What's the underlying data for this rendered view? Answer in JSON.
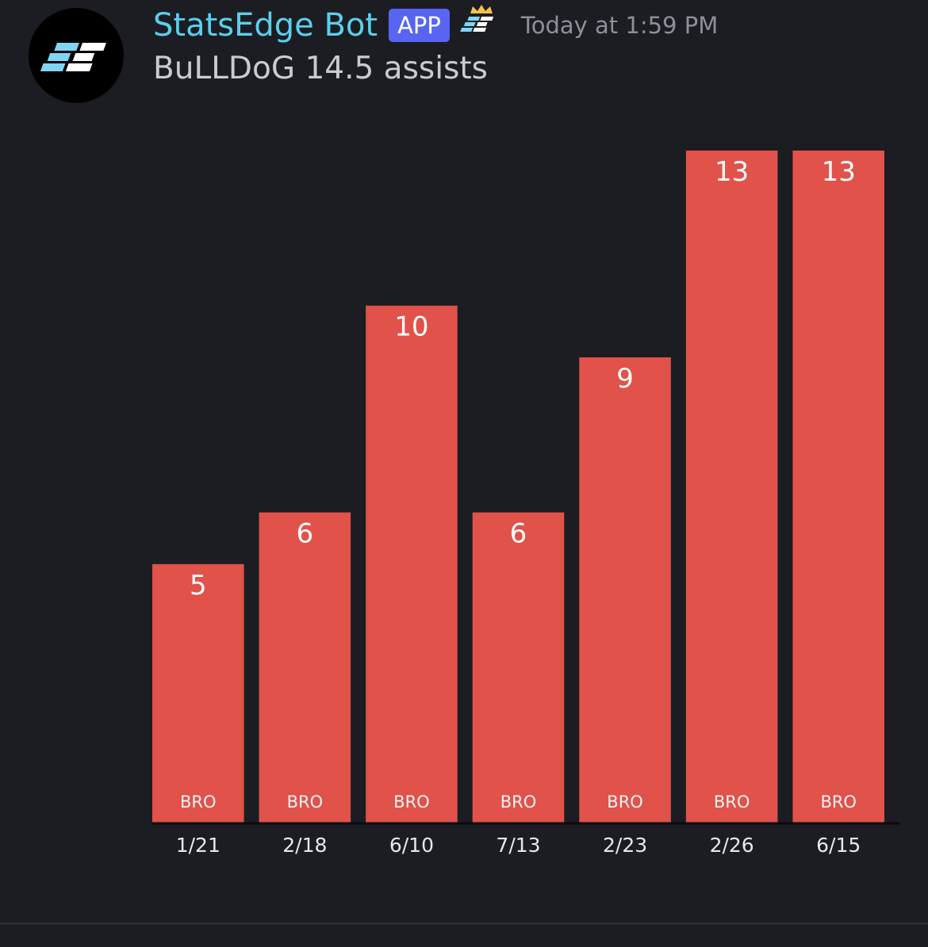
{
  "message": {
    "author": "StatsEdge Bot",
    "badge": "APP",
    "timestamp": "Today at 1:59 PM",
    "text": "BuLLDoG 14.5 assists",
    "avatar_icon": "statsedge-logo-icon",
    "server_tag_icon": "crowned-statsedge-logo-icon"
  },
  "colors": {
    "background": "#1c1d22",
    "author_name": "#5ad0ec",
    "badge": "#5865f2",
    "bar": "#e0524a",
    "bar_label": "#ffffff",
    "tick_label": "#e8e8e8"
  },
  "chart_data": {
    "type": "bar",
    "categories": [
      "1/21",
      "2/18",
      "6/10",
      "7/13",
      "2/23",
      "2/26",
      "6/15"
    ],
    "values": [
      5,
      6,
      10,
      6,
      9,
      13,
      13
    ],
    "bar_labels": [
      "BRO",
      "BRO",
      "BRO",
      "BRO",
      "BRO",
      "BRO",
      "BRO"
    ],
    "ylim": [
      0,
      13
    ],
    "grid": false
  }
}
